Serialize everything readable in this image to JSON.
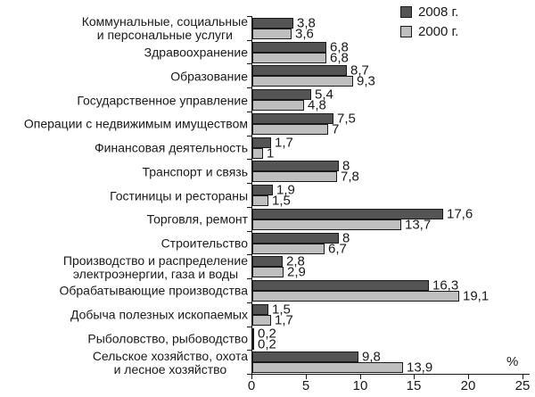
{
  "legend": {
    "items": [
      {
        "label": "2008 г.",
        "color": "#545454"
      },
      {
        "label": "2000 г.",
        "color": "#bfbfbf"
      }
    ]
  },
  "axis": {
    "x_tick_labels": [
      "0",
      "5",
      "10",
      "15",
      "20",
      "25"
    ],
    "x_tick_values": [
      0,
      5,
      10,
      15,
      20,
      25
    ],
    "unit_label": "%"
  },
  "chart_data": {
    "type": "bar",
    "orientation": "horizontal",
    "title": "",
    "xlabel": "%",
    "ylabel": "",
    "xlim": [
      0,
      25
    ],
    "grid": false,
    "legend_position": "top-right",
    "categories": [
      "Коммунальные, социальные\nи персональные услуги",
      "Здравоохранение",
      "Образование",
      "Государственное управление",
      "Операции с недвижимым имуществом",
      "Финансовая деятельность",
      "Транспорт и связь",
      "Гостиницы и рестораны",
      "Торговля, ремонт",
      "Строительство",
      "Производство и распределение\nэлектроэнергии, газа и воды",
      "Обрабатывающие производства",
      "Добыча полезных ископаемых",
      "Рыболовство, рыбоводство",
      "Сельское хозяйство, охота\nи лесное хозяйство"
    ],
    "series": [
      {
        "name": "2008 г.",
        "color": "#545454",
        "values": [
          3.8,
          6.8,
          8.7,
          5.4,
          7.5,
          1.7,
          8,
          1.9,
          17.6,
          8,
          2.8,
          16.3,
          1.5,
          0.2,
          9.8
        ],
        "value_labels": [
          "3,8",
          "6,8",
          "8,7",
          "5,4",
          "7,5",
          "1,7",
          "8",
          "1,9",
          "17,6",
          "8",
          "2,8",
          "16,3",
          "1,5",
          "0,2",
          "9,8"
        ]
      },
      {
        "name": "2000 г.",
        "color": "#bfbfbf",
        "values": [
          3.6,
          6.8,
          9.3,
          4.8,
          7,
          1,
          7.8,
          1.5,
          13.7,
          6.7,
          2.9,
          19.1,
          1.7,
          0.2,
          13.9
        ],
        "value_labels": [
          "3,6",
          "6,8",
          "9,3",
          "4,8",
          "7",
          "1",
          "7,8",
          "1,5",
          "13,7",
          "6,7",
          "2,9",
          "19,1",
          "1,7",
          "0,2",
          "13,9"
        ]
      }
    ]
  }
}
